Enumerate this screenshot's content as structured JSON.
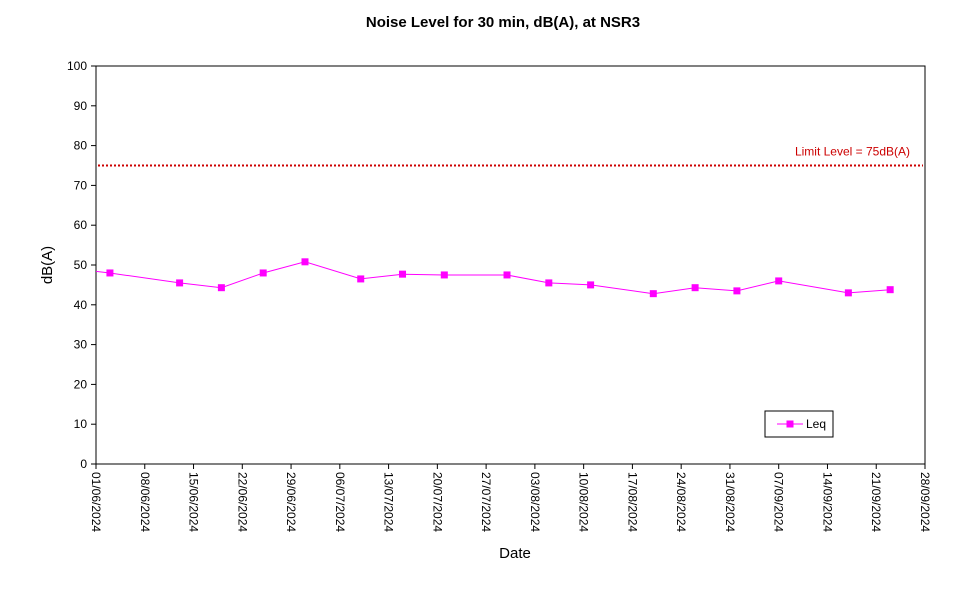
{
  "chart_data": {
    "type": "line",
    "title": "Noise Level for 30 min, dB(A), at NSR3",
    "xlabel": "Date",
    "ylabel": "dB(A)",
    "ylim": [
      0,
      100
    ],
    "yticks": [
      0,
      10,
      20,
      30,
      40,
      50,
      60,
      70,
      80,
      90,
      100
    ],
    "xlim": [
      "2024-06-01",
      "2024-09-28"
    ],
    "xtick_labels": [
      "01/06/2024",
      "08/06/2024",
      "15/06/2024",
      "22/06/2024",
      "29/06/2024",
      "06/07/2024",
      "13/07/2024",
      "20/07/2024",
      "27/07/2024",
      "03/08/2024",
      "10/08/2024",
      "17/08/2024",
      "24/08/2024",
      "31/08/2024",
      "07/09/2024",
      "14/09/2024",
      "21/09/2024",
      "28/09/2024"
    ],
    "grid": false,
    "legend_position": "bottom-right",
    "series": [
      {
        "name": "Leq",
        "color": "#ff00ff",
        "marker": "square",
        "x": [
          "2024-06-01",
          "2024-06-03",
          "2024-06-13",
          "2024-06-19",
          "2024-06-25",
          "2024-07-01",
          "2024-07-09",
          "2024-07-15",
          "2024-07-21",
          "2024-07-30",
          "2024-08-05",
          "2024-08-11",
          "2024-08-20",
          "2024-08-26",
          "2024-09-01",
          "2024-09-07",
          "2024-09-17",
          "2024-09-23"
        ],
        "values": [
          48.4,
          48.0,
          45.5,
          44.3,
          48.0,
          50.8,
          46.5,
          47.7,
          47.5,
          47.5,
          45.5,
          45.0,
          42.8,
          44.3,
          43.5,
          46.0,
          43.0,
          43.8
        ],
        "markers_shown": [
          false,
          true,
          true,
          true,
          true,
          true,
          true,
          true,
          true,
          true,
          true,
          true,
          true,
          true,
          true,
          true,
          true,
          true
        ]
      }
    ],
    "reference_lines": [
      {
        "label": "Limit Level  = 75dB(A)",
        "value": 75,
        "color": "#cc0000",
        "style": "dotted"
      }
    ]
  }
}
